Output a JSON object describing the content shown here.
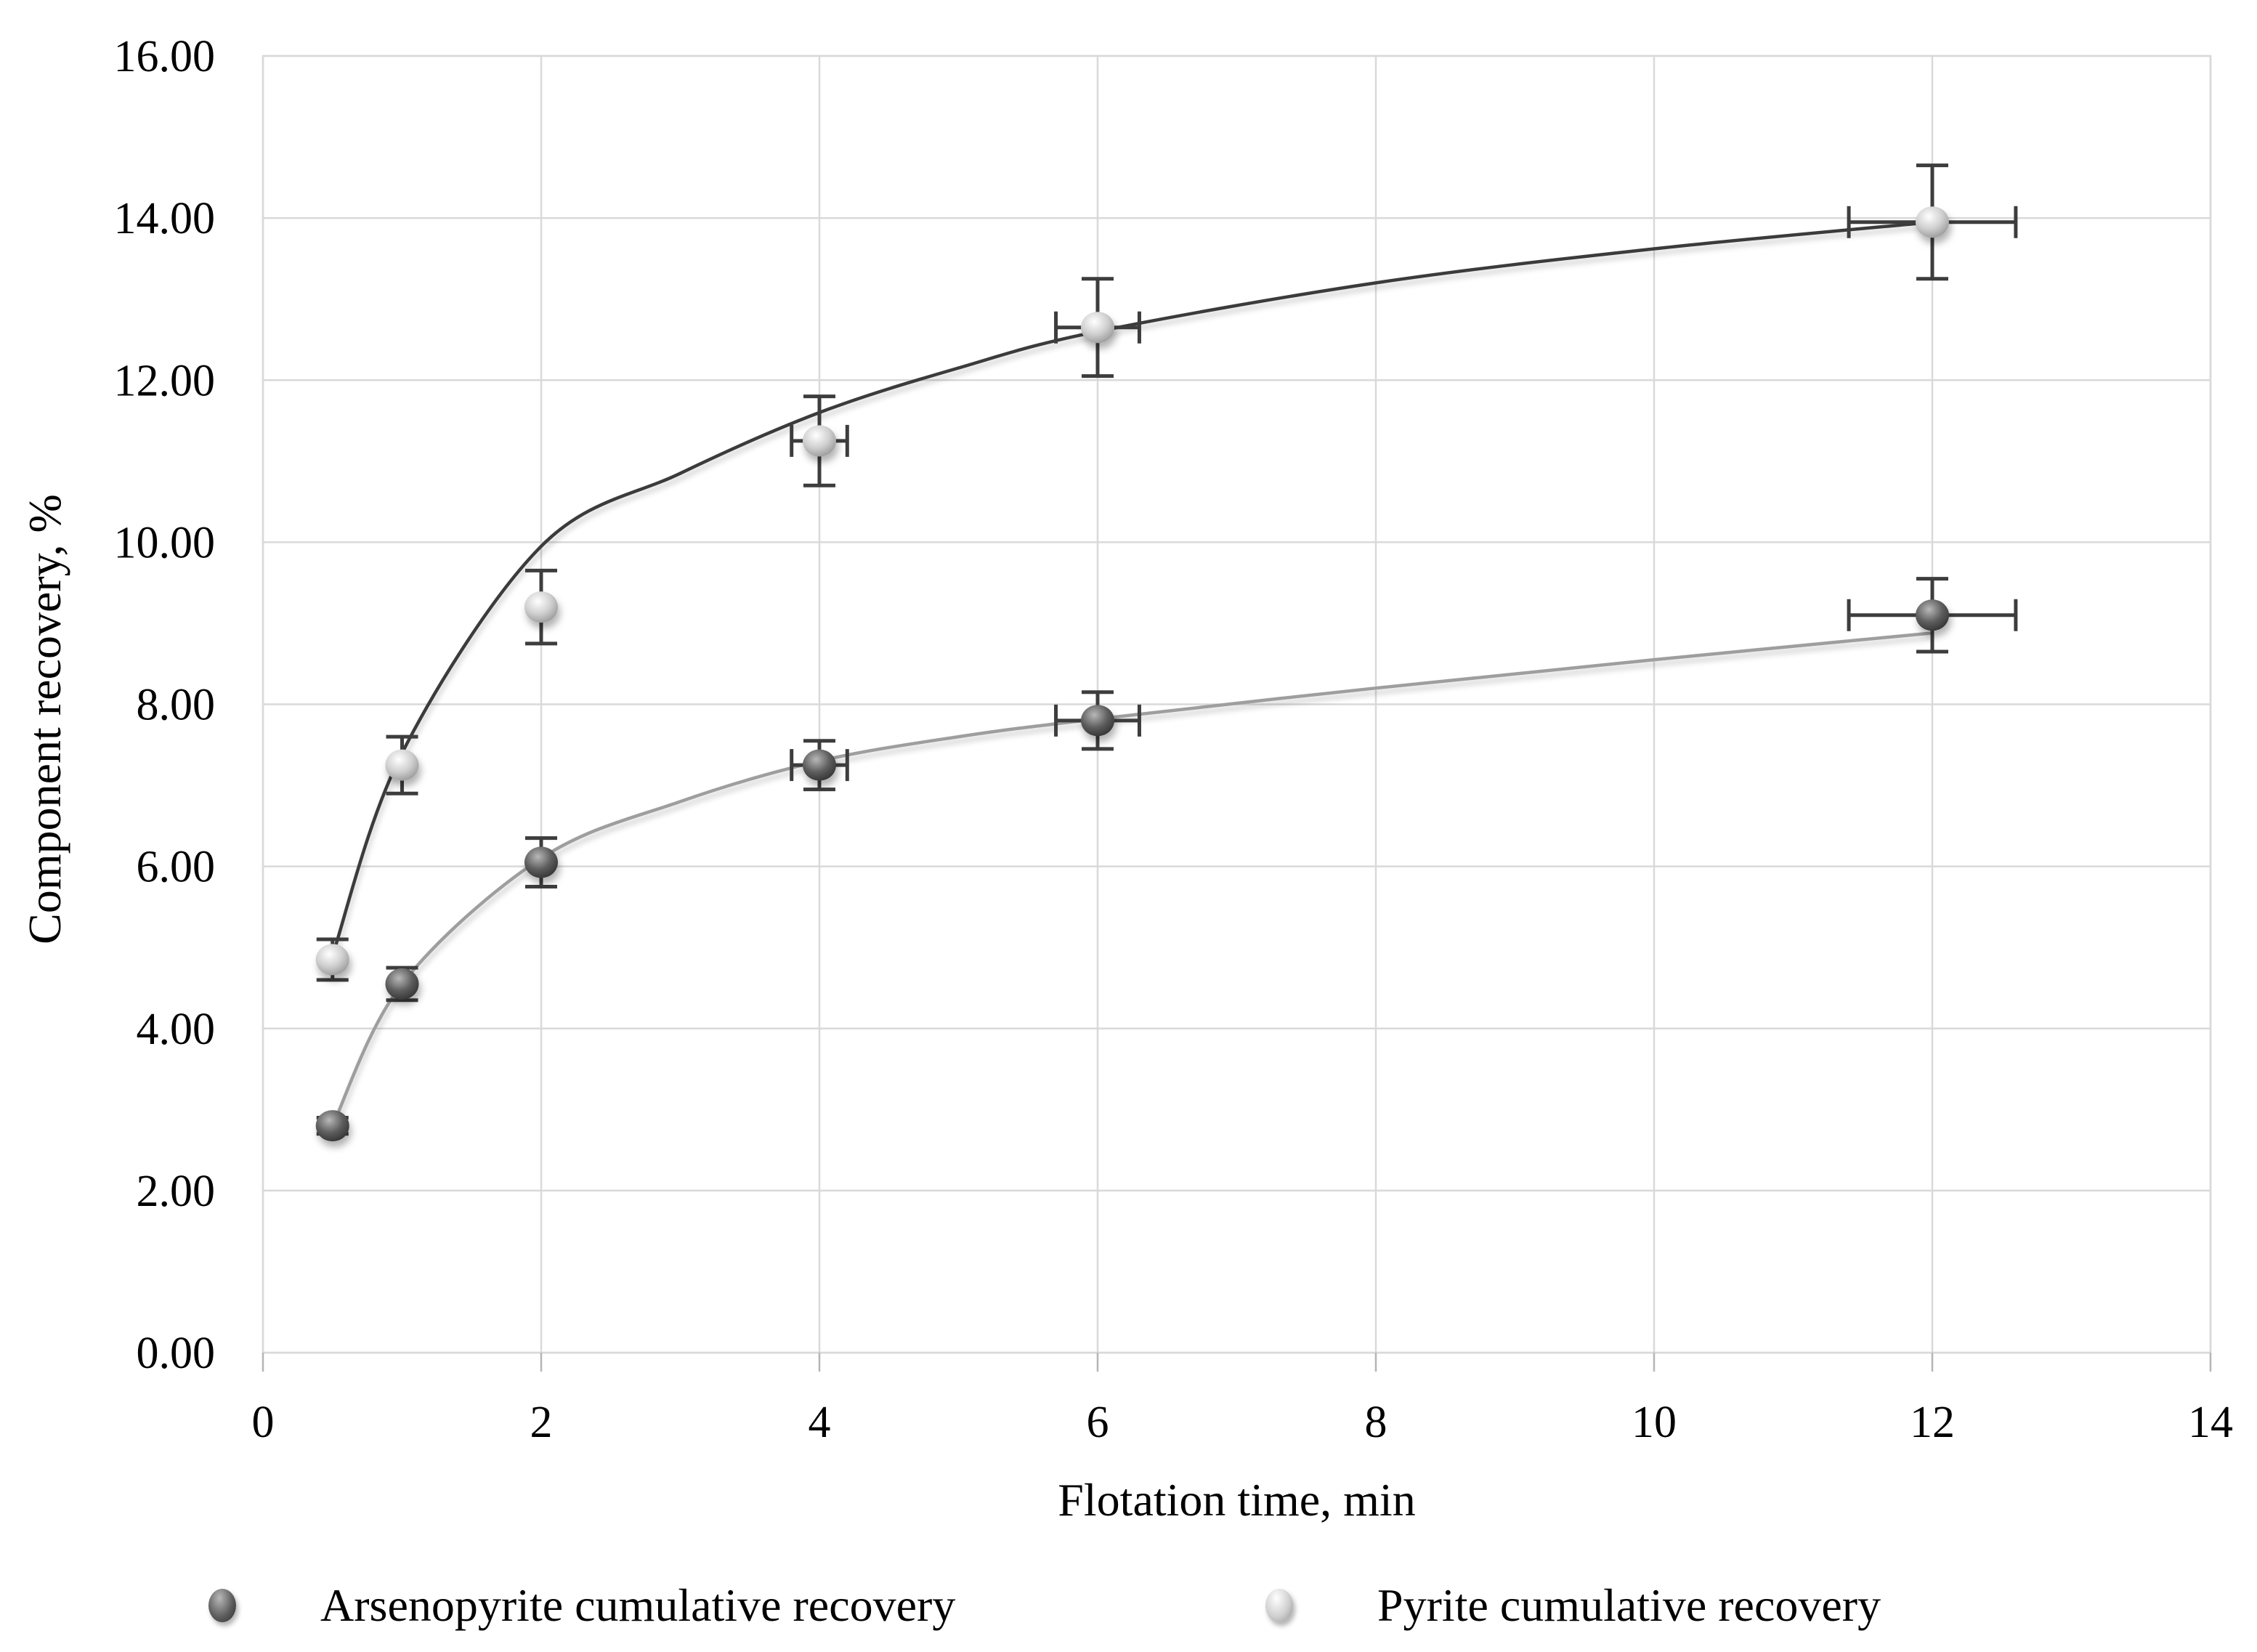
{
  "chart_data": {
    "type": "scatter",
    "title": "",
    "xlabel": "Flotation time, min",
    "ylabel": "Component recovery, %",
    "xlim": [
      0,
      14
    ],
    "ylim": [
      0,
      16
    ],
    "grid": true,
    "legend_position": "bottom",
    "background_color": "#ffffff",
    "grid_color": "#d9d9d9",
    "tick_color": "#b5b5b5",
    "text_color": "#000000",
    "error_bar_color": "#3d3d3d",
    "x_ticks": [
      {
        "v": 0,
        "label": "0"
      },
      {
        "v": 2,
        "label": "2"
      },
      {
        "v": 4,
        "label": "4"
      },
      {
        "v": 6,
        "label": "6"
      },
      {
        "v": 8,
        "label": "8"
      },
      {
        "v": 10,
        "label": "10"
      },
      {
        "v": 12,
        "label": "12"
      },
      {
        "v": 14,
        "label": "14"
      }
    ],
    "y_ticks": [
      {
        "v": 0,
        "label": "0.00"
      },
      {
        "v": 2,
        "label": "2.00"
      },
      {
        "v": 4,
        "label": "4.00"
      },
      {
        "v": 6,
        "label": "6.00"
      },
      {
        "v": 8,
        "label": "8.00"
      },
      {
        "v": 10,
        "label": "10.00"
      },
      {
        "v": 12,
        "label": "12.00"
      },
      {
        "v": 14,
        "label": "14.00"
      },
      {
        "v": 16,
        "label": "16.00"
      }
    ],
    "series": [
      {
        "name": "Arsenopyrite cumulative recovery",
        "slug": "arsenopyrite",
        "marker_style": "dark-gray-sphere",
        "line_color": "#9e9e9e",
        "marker": {
          "highlight": "#b8b8b8",
          "mid": "#5e5e5e",
          "edge": "#2c2c2c"
        },
        "points": [
          {
            "x": 0.5,
            "y": 2.8,
            "ey": 0.1
          },
          {
            "x": 1,
            "y": 4.55,
            "ey": 0.2
          },
          {
            "x": 2,
            "y": 6.05,
            "ey": 0.3
          },
          {
            "x": 4,
            "y": 7.25,
            "ey": 0.3,
            "ex": 0.2
          },
          {
            "x": 6,
            "y": 7.8,
            "ey": 0.35,
            "ex": 0.3
          },
          {
            "x": 12,
            "y": 9.1,
            "ey": 0.45,
            "ex": 0.6
          }
        ],
        "trend": [
          [
            0.5,
            2.8
          ],
          [
            1,
            4.55
          ],
          [
            2,
            6.1
          ],
          [
            3,
            6.8
          ],
          [
            4,
            7.3
          ],
          [
            5,
            7.6
          ],
          [
            6,
            7.82
          ],
          [
            8,
            8.2
          ],
          [
            10,
            8.55
          ],
          [
            12,
            8.88
          ]
        ]
      },
      {
        "name": "Pyrite cumulative recovery",
        "slug": "pyrite",
        "marker_style": "light-gray-sphere",
        "line_color": "#3a3a3a",
        "marker": {
          "highlight": "#ffffff",
          "mid": "#cfcfcf",
          "edge": "#909090"
        },
        "points": [
          {
            "x": 0.5,
            "y": 4.85,
            "ey": 0.25
          },
          {
            "x": 1,
            "y": 7.25,
            "ey": 0.35
          },
          {
            "x": 2,
            "y": 9.2,
            "ey": 0.45
          },
          {
            "x": 4,
            "y": 11.25,
            "ey": 0.55,
            "ex": 0.2
          },
          {
            "x": 6,
            "y": 12.65,
            "ey": 0.6,
            "ex": 0.3
          },
          {
            "x": 12,
            "y": 13.95,
            "ey": 0.7,
            "ex": 0.6
          }
        ],
        "trend": [
          [
            0.5,
            4.9
          ],
          [
            1,
            7.4
          ],
          [
            2,
            9.95
          ],
          [
            3,
            10.85
          ],
          [
            4,
            11.6
          ],
          [
            5,
            12.15
          ],
          [
            6,
            12.6
          ],
          [
            8,
            13.2
          ],
          [
            10,
            13.62
          ],
          [
            12,
            13.95
          ]
        ]
      }
    ]
  }
}
